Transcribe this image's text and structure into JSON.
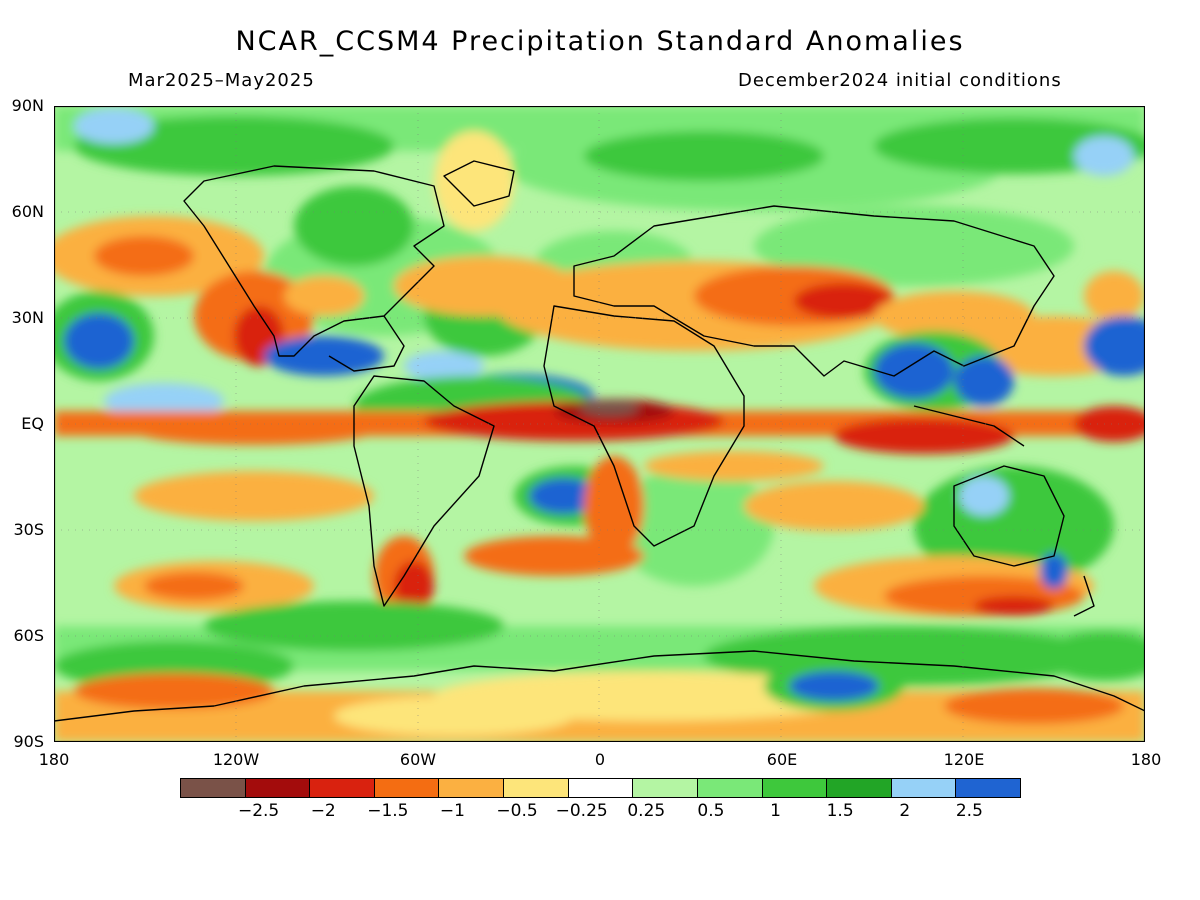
{
  "title": "NCAR_CCSM4 Precipitation Standard Anomalies",
  "period": "Mar2025–May2025",
  "initial_conditions": "December2024 initial conditions",
  "y_axis_labels": [
    "90N",
    "60N",
    "30N",
    "EQ",
    "30S",
    "60S",
    "90S"
  ],
  "x_axis_labels": [
    "180",
    "120W",
    "60W",
    "0",
    "60E",
    "120E",
    "180"
  ],
  "legend": {
    "colors": [
      "#7a5248",
      "#a30c0c",
      "#d9220f",
      "#f46d12",
      "#fbb041",
      "#fde57a",
      "#ffffff",
      "#b4f5a3",
      "#7ae878",
      "#3ec83c",
      "#22a526",
      "#96d1f7",
      "#1f64d2"
    ],
    "labels": [
      "−2.5",
      "−2",
      "−1.5",
      "−1",
      "−0.5",
      "−0.25",
      "0.25",
      "0.5",
      "1",
      "1.5",
      "2",
      "2.5"
    ]
  }
}
